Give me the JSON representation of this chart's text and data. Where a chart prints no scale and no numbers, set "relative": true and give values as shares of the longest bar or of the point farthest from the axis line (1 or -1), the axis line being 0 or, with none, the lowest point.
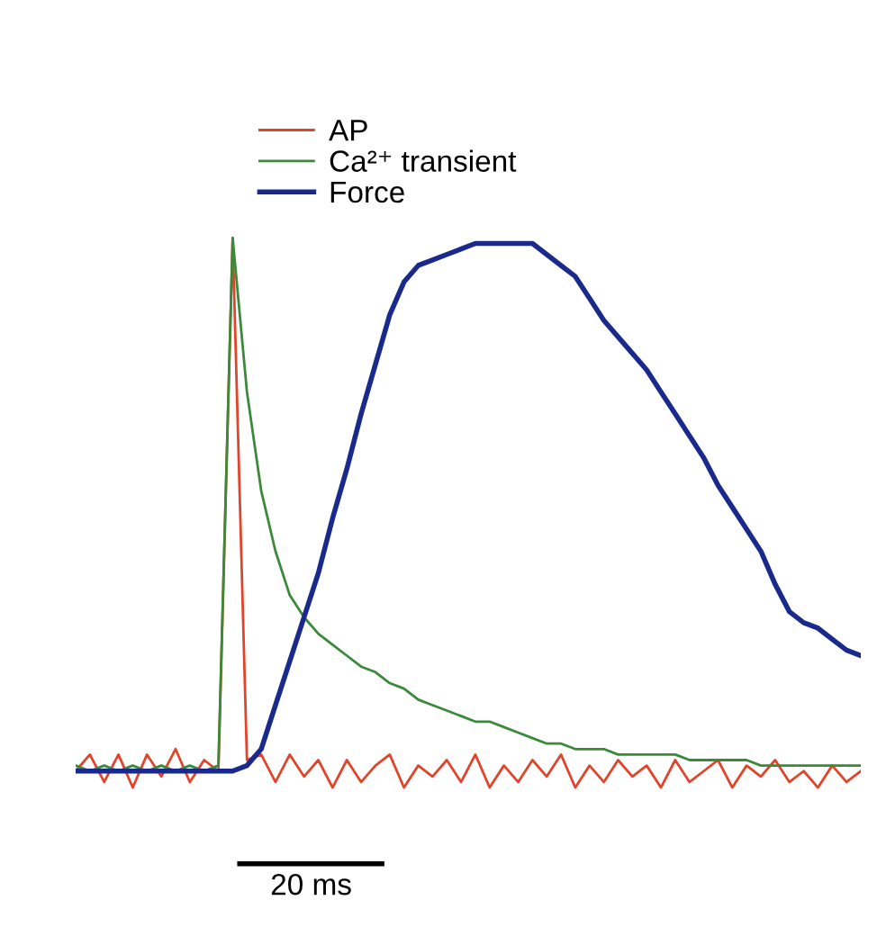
{
  "chart_data": {
    "type": "line",
    "relative": true,
    "categories": [
      null,
      null,
      null,
      null,
      null,
      null,
      null,
      null,
      null,
      null,
      null,
      null,
      null,
      null,
      null,
      null,
      null,
      null,
      null,
      null,
      null,
      null,
      null,
      null,
      null,
      null,
      null,
      null,
      null,
      null,
      null,
      null,
      null,
      null,
      null,
      null,
      null,
      null,
      null,
      null,
      null,
      null,
      null,
      null,
      null,
      null,
      null,
      null,
      null,
      null,
      null,
      null,
      null,
      null,
      null,
      null
    ],
    "legend": "top",
    "annotations": [
      "20 ms"
    ],
    "series": [
      {
        "name": "AP",
        "color": "#e0452b",
        "values": [
          0.03,
          0.06,
          0.01,
          0.06,
          0,
          0.06,
          0.02,
          0.07,
          0.01,
          0.05,
          0.03,
          1,
          0.05,
          0.06,
          0.01,
          0.06,
          0.02,
          0.05,
          0,
          0.05,
          0.01,
          0.04,
          0.06,
          0,
          0.04,
          0.02,
          0.05,
          0.01,
          0.06,
          0,
          0.04,
          0.01,
          0.05,
          0.02,
          0.06,
          0,
          0.04,
          0.01,
          0.05,
          0.02,
          0.04,
          0,
          0.05,
          0.01,
          0.03,
          0.05,
          0,
          0.04,
          0.02,
          0.05,
          0.01,
          0.03,
          0,
          0.04,
          0.01,
          0.03
        ]
      },
      {
        "name": "Ca²⁺ transient",
        "color": "#3a8a3a",
        "values": [
          0.04,
          0.03,
          0.04,
          0.03,
          0.04,
          0.03,
          0.04,
          0.03,
          0.04,
          0.03,
          0.04,
          1,
          0.72,
          0.54,
          0.43,
          0.35,
          0.31,
          0.28,
          0.26,
          0.24,
          0.22,
          0.21,
          0.19,
          0.18,
          0.16,
          0.15,
          0.14,
          0.13,
          0.12,
          0.12,
          0.11,
          0.1,
          0.09,
          0.08,
          0.08,
          0.07,
          0.07,
          0.07,
          0.06,
          0.06,
          0.06,
          0.06,
          0.06,
          0.05,
          0.05,
          0.05,
          0.05,
          0.05,
          0.04,
          0.04,
          0.04,
          0.04,
          0.04,
          0.04,
          0.04,
          0.04
        ]
      },
      {
        "name": "Force",
        "color": "#1a2a8c",
        "values": [
          0.03,
          0.03,
          0.03,
          0.03,
          0.03,
          0.03,
          0.03,
          0.03,
          0.03,
          0.03,
          0.03,
          0.03,
          0.04,
          0.07,
          0.15,
          0.23,
          0.31,
          0.39,
          0.49,
          0.58,
          0.68,
          0.77,
          0.86,
          0.92,
          0.95,
          0.96,
          0.97,
          0.98,
          0.99,
          0.99,
          0.99,
          0.99,
          0.99,
          0.97,
          0.95,
          0.93,
          0.89,
          0.85,
          0.82,
          0.79,
          0.76,
          0.72,
          0.68,
          0.64,
          0.6,
          0.55,
          0.51,
          0.47,
          0.43,
          0.37,
          0.32,
          0.3,
          0.29,
          0.27,
          0.25,
          0.24
        ]
      }
    ]
  }
}
